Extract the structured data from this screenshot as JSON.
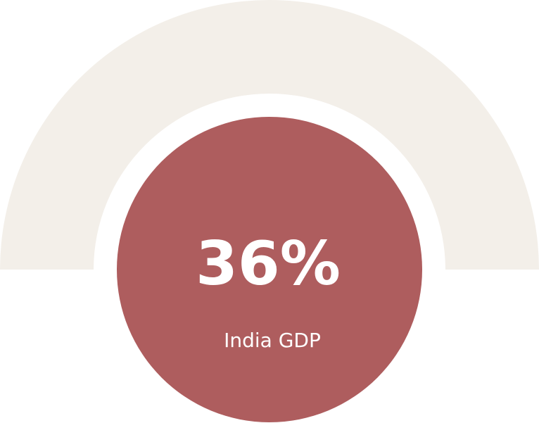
{
  "colors": {
    "track": "#f3efe9",
    "center": "#ae5d5e",
    "text": "#ffffff"
  },
  "chart_data": {
    "type": "gauge",
    "value": 36,
    "value_label": "36%",
    "label": "India GDP",
    "unit": "%",
    "range": [
      0,
      100
    ]
  }
}
